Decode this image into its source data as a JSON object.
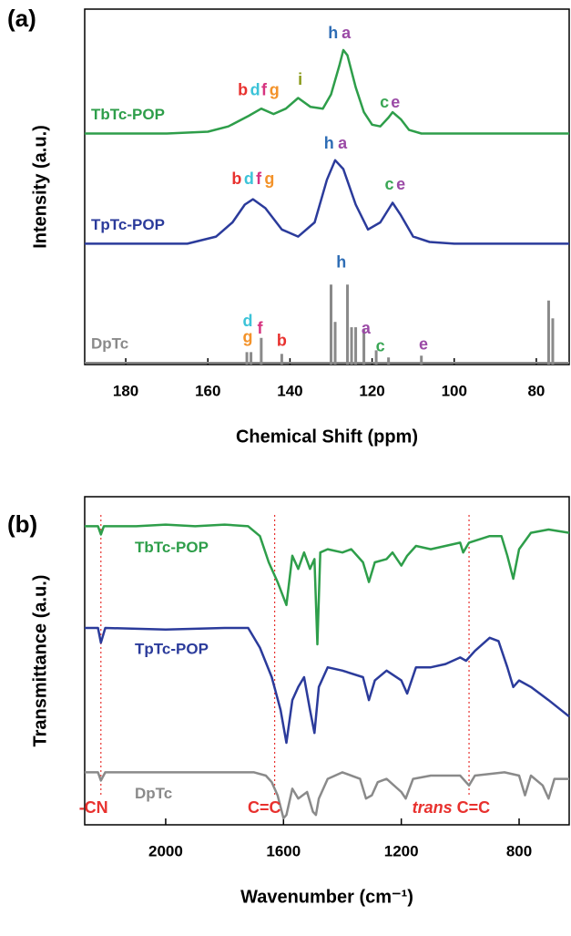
{
  "chart_data": [
    {
      "type": "line",
      "panel_label": "(a)",
      "x_label": "Chemical Shift (ppm)",
      "y_label": "Intensity (a.u.)",
      "xlim": [
        190,
        72
      ],
      "xticks": [
        180,
        160,
        140,
        120,
        100,
        80
      ],
      "ylim": [
        0,
        100
      ],
      "series": [
        {
          "name": "TbTc-POP",
          "color": "#2e9e4a",
          "x": [
            190,
            170,
            160,
            155,
            150,
            147,
            144,
            141,
            138,
            135,
            132,
            130,
            128,
            127,
            126,
            124,
            122,
            120,
            118,
            116,
            115,
            113,
            111,
            108,
            100,
            72
          ],
          "values": [
            65,
            65,
            65.5,
            67,
            70,
            72,
            70.5,
            72,
            75,
            72.5,
            72,
            76,
            84,
            88.5,
            87,
            78,
            71,
            67.5,
            67,
            69.5,
            71,
            69,
            66,
            65,
            65,
            65
          ]
        },
        {
          "name": "TpTc-POP",
          "color": "#2b3b9b",
          "x": [
            190,
            165,
            158,
            154,
            151,
            149,
            146,
            142,
            138,
            134,
            131,
            129,
            127,
            124,
            121,
            118,
            115,
            113,
            110,
            106,
            100,
            72
          ],
          "values": [
            34,
            34,
            36,
            40,
            45,
            46.5,
            44,
            38,
            36,
            40,
            52,
            57.5,
            55,
            45,
            38,
            40,
            45.5,
            42,
            36,
            34.5,
            34,
            34
          ]
        },
        {
          "name": "DpTc",
          "color": "#8a8a8a",
          "type": "stick",
          "x": [
            150.5,
            149.5,
            147,
            142,
            130,
            129,
            126,
            125,
            124,
            122,
            119,
            116,
            108,
            77,
            76
          ],
          "values": [
            3.5,
            3.5,
            7.5,
            3,
            22.5,
            12,
            22.5,
            10.5,
            10.5,
            10,
            4,
            2,
            2.5,
            18,
            13
          ]
        }
      ],
      "annotations": [
        {
          "text": "b",
          "x": 151.5,
          "y": 77,
          "color": "#e8312e"
        },
        {
          "text": "d",
          "x": 148.5,
          "y": 77,
          "color": "#3cc3d8"
        },
        {
          "text": "f",
          "x": 146.3,
          "y": 77,
          "color": "#d6337f"
        },
        {
          "text": "g",
          "x": 143.8,
          "y": 77,
          "color": "#f39229"
        },
        {
          "text": "i",
          "x": 137.5,
          "y": 80,
          "color": "#8a9a1a"
        },
        {
          "text": "h",
          "x": 129.5,
          "y": 93,
          "color": "#2e6db5"
        },
        {
          "text": "a",
          "x": 126.3,
          "y": 93,
          "color": "#9b4aa6"
        },
        {
          "text": "c",
          "x": 117,
          "y": 73.5,
          "color": "#3aa655"
        },
        {
          "text": "e",
          "x": 114.3,
          "y": 73.5,
          "color": "#9b4aa6"
        },
        {
          "text": "b",
          "x": 153,
          "y": 52,
          "color": "#e8312e"
        },
        {
          "text": "d",
          "x": 150,
          "y": 52,
          "color": "#3cc3d8"
        },
        {
          "text": "f",
          "x": 147.6,
          "y": 52,
          "color": "#d6337f"
        },
        {
          "text": "g",
          "x": 145,
          "y": 52,
          "color": "#f39229"
        },
        {
          "text": "h",
          "x": 130.5,
          "y": 62,
          "color": "#2e6db5"
        },
        {
          "text": "a",
          "x": 127.2,
          "y": 62,
          "color": "#9b4aa6"
        },
        {
          "text": "c",
          "x": 115.8,
          "y": 50.5,
          "color": "#3aa655"
        },
        {
          "text": "e",
          "x": 113,
          "y": 50.5,
          "color": "#9b4aa6"
        },
        {
          "text": "g",
          "x": 150.3,
          "y": 7.5,
          "color": "#f39229"
        },
        {
          "text": "d",
          "x": 150.3,
          "y": 12,
          "color": "#3cc3d8"
        },
        {
          "text": "f",
          "x": 147.3,
          "y": 10,
          "color": "#d6337f"
        },
        {
          "text": "b",
          "x": 142,
          "y": 6.5,
          "color": "#e8312e"
        },
        {
          "text": "h",
          "x": 127.5,
          "y": 28.5,
          "color": "#2e6db5"
        },
        {
          "text": "a",
          "x": 121.5,
          "y": 10,
          "color": "#9b4aa6"
        },
        {
          "text": "c",
          "x": 118,
          "y": 5,
          "color": "#3aa655"
        },
        {
          "text": "e",
          "x": 107.5,
          "y": 5.5,
          "color": "#9b4aa6"
        }
      ]
    },
    {
      "type": "line",
      "panel_label": "(b)",
      "x_label": "Wavenumber (cm⁻¹)",
      "y_label": "Transmittance (a.u.)",
      "xlim": [
        2275,
        630
      ],
      "xticks": [
        2000,
        1600,
        1200,
        800
      ],
      "ylim": [
        0,
        100
      ],
      "ref_lines": [
        2220,
        1630,
        970
      ],
      "ref_color": "#e8312e",
      "series": [
        {
          "name": "TbTc-POP",
          "color": "#2e9e4a",
          "x": [
            2275,
            2230,
            2220,
            2210,
            2100,
            2000,
            1900,
            1800,
            1720,
            1680,
            1650,
            1620,
            1590,
            1570,
            1550,
            1530,
            1510,
            1495,
            1485,
            1475,
            1450,
            1400,
            1370,
            1330,
            1310,
            1290,
            1250,
            1230,
            1200,
            1180,
            1150,
            1100,
            1050,
            1000,
            990,
            970,
            900,
            860,
            840,
            820,
            800,
            760,
            700,
            630
          ],
          "values": [
            91,
            91,
            88.5,
            91,
            91,
            91.5,
            91,
            91.5,
            91,
            88,
            80,
            74,
            67,
            82,
            78,
            83,
            78,
            81,
            55,
            83,
            84,
            83,
            84,
            80,
            74,
            80,
            81,
            83,
            79,
            82,
            85,
            84,
            85,
            86,
            83,
            86,
            88,
            88,
            82,
            75,
            84,
            89,
            90,
            89
          ]
        },
        {
          "name": "TpTc-POP",
          "color": "#2b3b9b",
          "x": [
            2275,
            2230,
            2220,
            2205,
            2000,
            1800,
            1720,
            1680,
            1640,
            1610,
            1590,
            1570,
            1550,
            1530,
            1510,
            1495,
            1480,
            1450,
            1400,
            1330,
            1310,
            1290,
            1250,
            1200,
            1180,
            1150,
            1100,
            1050,
            1000,
            980,
            950,
            900,
            870,
            840,
            820,
            800,
            760,
            700,
            630
          ],
          "values": [
            60,
            60,
            55.5,
            60,
            59.5,
            60,
            60,
            54,
            45,
            35,
            25,
            38,
            42,
            45,
            35,
            28,
            42,
            48,
            47,
            45,
            38,
            44,
            47,
            44,
            40,
            48,
            48,
            49,
            51,
            50,
            53,
            57,
            56,
            48,
            42,
            44,
            42,
            38,
            33
          ]
        },
        {
          "name": "DpTc",
          "color": "#8a8a8a",
          "x": [
            2275,
            2230,
            2220,
            2205,
            2000,
            1800,
            1700,
            1660,
            1640,
            1620,
            1600,
            1590,
            1570,
            1550,
            1520,
            1500,
            1490,
            1480,
            1450,
            1400,
            1340,
            1320,
            1300,
            1280,
            1250,
            1200,
            1185,
            1160,
            1100,
            1000,
            970,
            950,
            850,
            800,
            780,
            760,
            720,
            700,
            680,
            630
          ],
          "values": [
            16,
            16,
            13.5,
            16,
            16,
            16,
            16,
            15,
            13,
            9,
            2,
            3,
            11,
            8,
            10,
            4,
            3,
            8,
            14,
            16,
            14,
            8,
            9,
            13,
            14,
            10,
            8,
            14,
            15,
            15,
            12,
            15,
            16,
            15,
            9,
            15,
            12,
            8,
            14,
            14
          ]
        }
      ],
      "annotations": [
        {
          "text": "-CN",
          "x": 2245,
          "y": 5,
          "color": "#e8312e"
        },
        {
          "text": "C=C",
          "x": 1665,
          "y": 5,
          "color": "#e8312e"
        },
        {
          "text": "trans",
          "x": 1095,
          "y": 5,
          "color": "#e8312e",
          "style": "italic"
        },
        {
          "text": "C=C",
          "x": 955,
          "y": 5,
          "color": "#e8312e"
        }
      ]
    }
  ]
}
